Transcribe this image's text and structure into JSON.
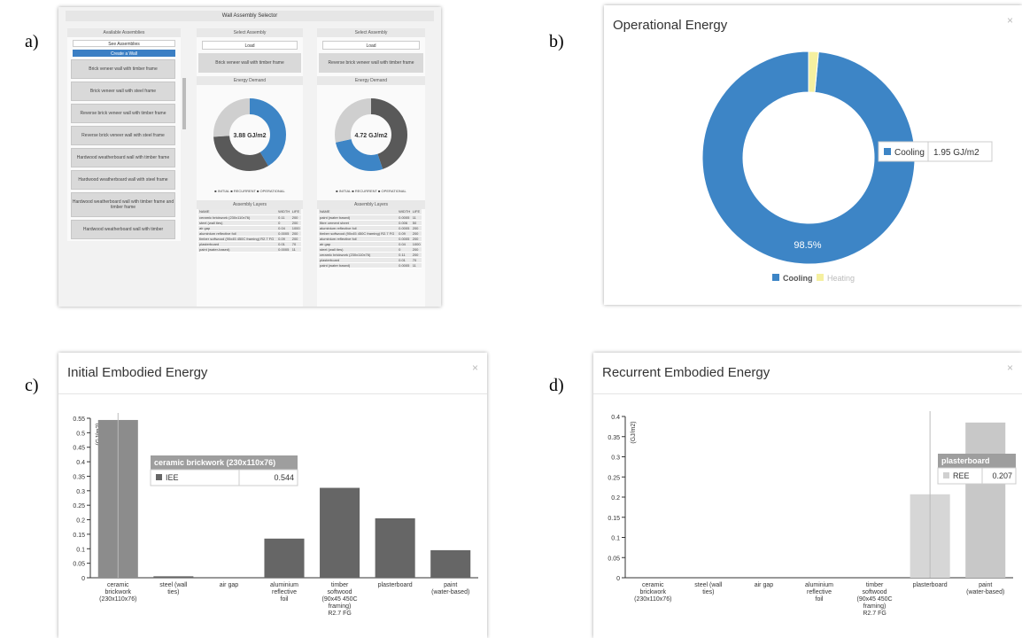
{
  "labels": {
    "a": "a)",
    "b": "b)",
    "c": "c)",
    "d": "d)"
  },
  "panel_a": {
    "title": "Wall Assembly Selector",
    "available_header": "Available Assemblies",
    "btn_see": "See Assemblies",
    "btn_create": "Create a Wall",
    "assemblies": [
      "Brick veneer wall with timber frame",
      "Brick veneer wall with steel frame",
      "Reverse brick veneer wall with timber frame",
      "Reverse brick veneer wall with steel frame",
      "Hardwood weatherboard wall with timber frame",
      "Hardwood weatherboard wall with steel frame",
      "Hardwood weatherboard wall with timber frame and timber frame",
      "Hardwood weatherboard wall with timber"
    ],
    "select_header": "Select Assembly",
    "select_value": "Load",
    "sel1": "Brick veneer wall with timber frame",
    "sel2": "Reverse brick veneer wall with timber frame",
    "energy_header": "Energy Demand",
    "donut1": {
      "center": "3.88 GJ/m2",
      "values": [
        41.4,
        32.6,
        26.0
      ]
    },
    "donut2": {
      "center": "4.72 GJ/m2",
      "values": [
        44.7,
        26.7,
        28.6
      ]
    },
    "legend": "■ INITIAL  ■ RECURRENT  ■ OPERATIONAL",
    "layers_header": "Assembly Layers",
    "cols": [
      "NAME",
      "WIDTH",
      "LIFE"
    ],
    "layers1": [
      [
        "ceramic brickwork (230x110x76)",
        "0.11",
        "200"
      ],
      [
        "steel (wall ties)",
        "0",
        "200"
      ],
      [
        "air gap",
        "0.04",
        "1000"
      ],
      [
        "aluminium reflective foil",
        "0.0005",
        "200"
      ],
      [
        "timber softwood (90x45 450C framing) R2.7 FG",
        "0.09",
        "200"
      ],
      [
        "plasterboard",
        "0.01",
        "70"
      ],
      [
        "paint (water-based)",
        "0.0005",
        "11"
      ]
    ],
    "layers2": [
      [
        "paint (water based)",
        "0.0005",
        "11"
      ],
      [
        "fibre cement sheet",
        "0.006",
        "50"
      ],
      [
        "aluminium reflective foil",
        "0.0005",
        "200"
      ],
      [
        "timber softwood (90x45 450C framing) R2.7 FG",
        "0.09",
        "200"
      ],
      [
        "aluminium reflective foil",
        "0.0005",
        "200"
      ],
      [
        "air gap",
        "0.04",
        "1000"
      ],
      [
        "steel (wall ties)",
        "0",
        "200"
      ],
      [
        "ceramic brickwork (230x110x76)",
        "0.11",
        "200"
      ],
      [
        "plasterboard",
        "0.01",
        "70"
      ],
      [
        "paint (water based)",
        "0.0005",
        "11"
      ]
    ]
  },
  "panel_b": {
    "title": "Operational Energy",
    "close": "×",
    "tooltip_label": "Cooling",
    "tooltip_value": "1.95 GJ/m2",
    "pct_label": "98.5%",
    "legend": [
      "Cooling",
      "Heating"
    ],
    "colors": {
      "cooling": "#3d85c6",
      "heating": "#f5f0a0"
    },
    "chart_data": {
      "type": "pie",
      "categories": [
        "Cooling",
        "Heating"
      ],
      "values": [
        98.5,
        1.5
      ]
    }
  },
  "panel_c": {
    "title": "Initial Embodied Energy",
    "close": "×",
    "ylabel": "(GJ/m2)",
    "tooltip_title": "ceramic brickwork (230x110x76)",
    "tooltip_key": "IEE",
    "tooltip_value": "0.544",
    "chart_data": {
      "type": "bar",
      "categories": [
        "ceramic brickwork (230x110x76)",
        "steel (wall ties)",
        "air gap",
        "aluminium reflective foil",
        "timber softwood (90x45 450C framing) R2.7 FG",
        "plasterboard",
        "paint (water-based)"
      ],
      "values": [
        0.544,
        0.005,
        0,
        0.135,
        0.31,
        0.205,
        0.095
      ],
      "ylim": [
        0,
        0.55
      ],
      "ylabel": "(GJ/m2)",
      "yticks": [
        "0",
        "0.05",
        "0.1",
        "0.15",
        "0.2",
        "0.25",
        "0.3",
        "0.35",
        "0.4",
        "0.45",
        "0.5",
        "0.55"
      ]
    }
  },
  "panel_d": {
    "title": "Recurrent Embodied Energy",
    "close": "×",
    "ylabel": "(GJ/m2)",
    "tooltip_title": "plasterboard",
    "tooltip_key": "REE",
    "tooltip_value": "0.207",
    "chart_data": {
      "type": "bar",
      "categories": [
        "ceramic brickwork (230x110x76)",
        "steel (wall ties)",
        "air gap",
        "aluminium reflective foil",
        "timber softwood (90x45 450C framing) R2.7 FG",
        "plasterboard",
        "paint (water-based)"
      ],
      "values": [
        0,
        0,
        0,
        0,
        0,
        0.207,
        0.385
      ],
      "ylim": [
        0,
        0.4
      ],
      "ylabel": "(GJ/m2)",
      "yticks": [
        "0",
        "0.05",
        "0.1",
        "0.15",
        "0.2",
        "0.25",
        "0.3",
        "0.35",
        "0.4"
      ]
    }
  }
}
